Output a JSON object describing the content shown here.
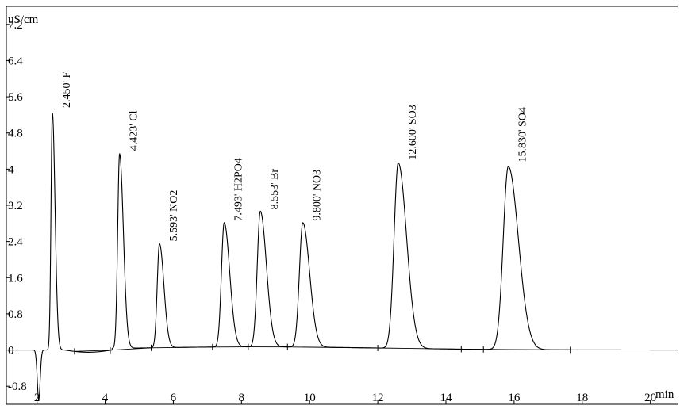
{
  "chart_data": {
    "type": "line",
    "ylabel": "uS/cm",
    "xlabel": "min",
    "xlim": [
      1.1,
      20.8
    ],
    "ylim": [
      -1.2,
      7.6
    ],
    "x_ticks": [
      "2",
      "4",
      "6",
      "8",
      "10",
      "12",
      "14",
      "16",
      "18",
      "20"
    ],
    "y_ticks": [
      "7.2",
      "6.4",
      "5.6",
      "4.8",
      "4",
      "3.2",
      "2.4",
      "1.6",
      "0.8",
      "0",
      "-0.8"
    ],
    "y_tick_values": [
      7.2,
      6.4,
      5.6,
      4.8,
      4,
      3.2,
      2.4,
      1.6,
      0.8,
      0,
      -0.8
    ],
    "dip": {
      "x": 2.05,
      "y": -1.1
    },
    "peaks": [
      {
        "label": "2.450'  F",
        "rt": 2.45,
        "height": 5.25
      },
      {
        "label": "4.423'  Cl",
        "rt": 4.423,
        "height": 4.3
      },
      {
        "label": "5.593'  NO2",
        "rt": 5.593,
        "height": 2.3
      },
      {
        "label": "7.493'  H2PO4",
        "rt": 7.493,
        "height": 2.75
      },
      {
        "label": "8.553'  Br",
        "rt": 8.553,
        "height": 3.0
      },
      {
        "label": "9.800'  NO3",
        "rt": 9.8,
        "height": 2.75
      },
      {
        "label": "12.600'  SO3",
        "rt": 12.6,
        "height": 4.1
      },
      {
        "label": "15.830'  SO4",
        "rt": 15.83,
        "height": 4.05
      }
    ],
    "integration_markers": [
      3.1,
      4.15,
      5.35,
      7.15,
      8.2,
      9.35,
      12.0,
      14.45,
      15.1,
      17.65
    ],
    "grid": false
  }
}
